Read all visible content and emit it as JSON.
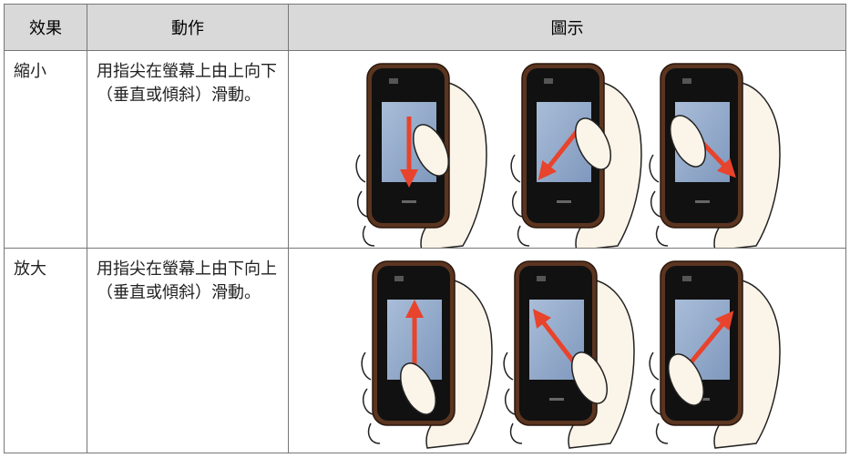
{
  "header": {
    "effect": "效果",
    "action": "動作",
    "illustration": "圖示"
  },
  "rows": [
    {
      "effect": "縮小",
      "action": "用指尖在螢幕上由上向下（垂直或傾斜）滑動。"
    },
    {
      "effect": "放大",
      "action": "用指尖在螢幕上由下向上（垂直或傾斜）滑動。"
    }
  ]
}
